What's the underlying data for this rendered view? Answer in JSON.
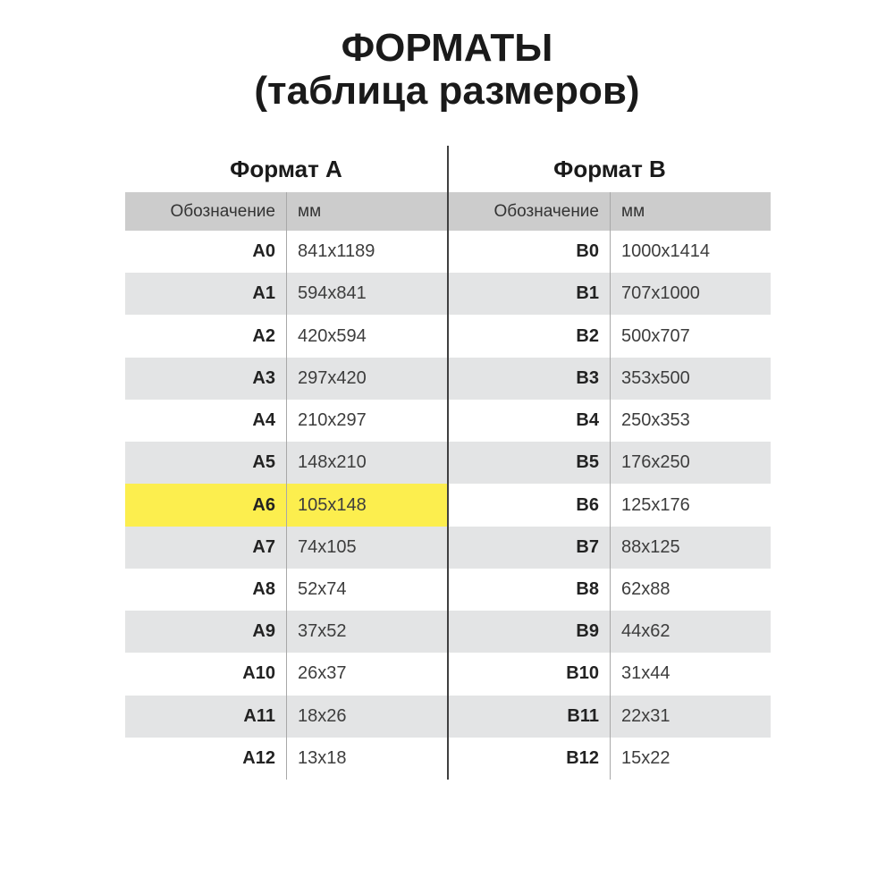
{
  "page": {
    "title_line1": "ФОРМАТЫ",
    "title_line2": "(таблица размеров)"
  },
  "colors": {
    "header_bg": "#cccccc",
    "zebra_bg": "#e3e4e5",
    "highlight_bg": "#fcee4e",
    "divider": "#404040",
    "separator": "#a8a8a8"
  },
  "tables": [
    {
      "title": "Формат А",
      "headers": {
        "designation": "Обозначение",
        "mm": "мм"
      },
      "rows": [
        {
          "label": "A0",
          "mm": "841x1189"
        },
        {
          "label": "A1",
          "mm": "594x841"
        },
        {
          "label": "A2",
          "mm": "420x594"
        },
        {
          "label": "A3",
          "mm": "297x420"
        },
        {
          "label": "A4",
          "mm": "210x297"
        },
        {
          "label": "A5",
          "mm": "148x210"
        },
        {
          "label": "A6",
          "mm": "105x148",
          "highlight": true
        },
        {
          "label": "A7",
          "mm": "74x105"
        },
        {
          "label": "A8",
          "mm": "52x74"
        },
        {
          "label": "A9",
          "mm": "37x52"
        },
        {
          "label": "A10",
          "mm": "26x37"
        },
        {
          "label": "A11",
          "mm": "18x26"
        },
        {
          "label": "A12",
          "mm": "13x18"
        }
      ]
    },
    {
      "title": "Формат B",
      "headers": {
        "designation": "Обозначение",
        "mm": "мм"
      },
      "rows": [
        {
          "label": "B0",
          "mm": "1000x1414"
        },
        {
          "label": "B1",
          "mm": "707x1000"
        },
        {
          "label": "B2",
          "mm": "500x707"
        },
        {
          "label": "B3",
          "mm": "353x500"
        },
        {
          "label": "B4",
          "mm": "250x353"
        },
        {
          "label": "B5",
          "mm": "176x250"
        },
        {
          "label": "B6",
          "mm": "125x176"
        },
        {
          "label": "B7",
          "mm": "88x125"
        },
        {
          "label": "B8",
          "mm": "62x88"
        },
        {
          "label": "B9",
          "mm": "44x62"
        },
        {
          "label": "B10",
          "mm": "31x44"
        },
        {
          "label": "B11",
          "mm": "22x31"
        },
        {
          "label": "B12",
          "mm": "15x22"
        }
      ]
    }
  ]
}
